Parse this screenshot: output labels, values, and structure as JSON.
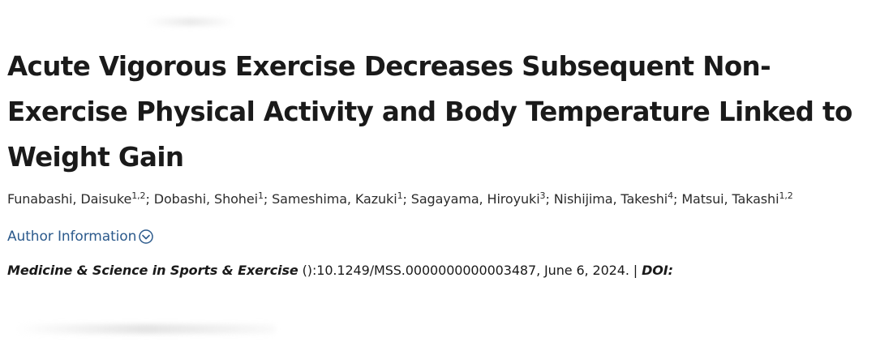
{
  "article": {
    "title": "Acute Vigorous Exercise Decreases Subsequent Non-Exercise Physical Activity and Body Temperature Linked to Weight Gain",
    "authors": [
      {
        "name": "Funabashi, Daisuke",
        "affil": "1,2",
        "sep": "; "
      },
      {
        "name": "Dobashi, Shohei",
        "affil": "1",
        "sep": "; "
      },
      {
        "name": "Sameshima, Kazuki",
        "affil": "1",
        "sep": "; "
      },
      {
        "name": "Sagayama, Hiroyuki",
        "affil": "3",
        "sep": "; "
      },
      {
        "name": "Nishijima, Takeshi",
        "affil": "4",
        "sep": "; "
      },
      {
        "name": "Matsui, Takashi",
        "affil": "1,2",
        "sep": ""
      }
    ],
    "author_info_label": "Author Information",
    "author_info_icon": "chevron-circle-down-icon",
    "citation": {
      "journal": "Medicine & Science in Sports & Exercise",
      "details": " ():10.1249/MSS.0000000000003487, June 6, 2024. | ",
      "doi_label": "DOI:"
    }
  },
  "colors": {
    "link": "#2c5a8c",
    "text": "#1a1a1a"
  }
}
